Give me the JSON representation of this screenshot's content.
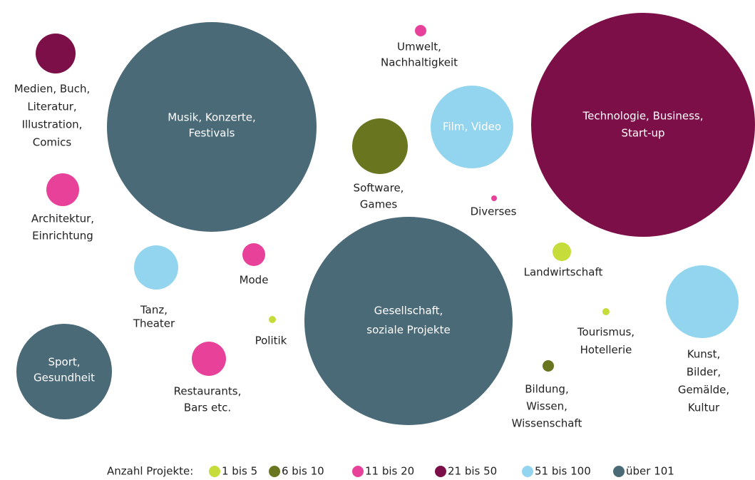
{
  "legend": {
    "title": "Anzahl Projekte:",
    "items": [
      {
        "label": "1 bis 5",
        "color": "#c6dc3a"
      },
      {
        "label": "6 bis 10",
        "color": "#6a7520"
      },
      {
        "label": "11 bis 20",
        "color": "#e8419a"
      },
      {
        "label": "21 bis 50",
        "color": "#7d0f48"
      },
      {
        "label": "51 bis 100",
        "color": "#93d5ef"
      },
      {
        "label": "über 101",
        "color": "#4a6a78"
      }
    ]
  },
  "bubbles": [
    {
      "label": [
        "Medien, Buch,",
        "Literatur,",
        "Illustration,",
        "Comics"
      ],
      "group": 3
    },
    {
      "label": [
        "Musik, Konzerte,",
        "Festivals"
      ],
      "group": 5
    },
    {
      "label": [
        "Architektur,",
        "Einrichtung"
      ],
      "group": 2
    },
    {
      "label": [
        "Tanz,",
        "Theater"
      ],
      "group": 4
    },
    {
      "label": [
        "Sport,",
        "Gesundheit"
      ],
      "group": 5
    },
    {
      "label": [
        "Mode"
      ],
      "group": 2
    },
    {
      "label": [
        "Politik"
      ],
      "group": 0
    },
    {
      "label": [
        "Restaurants,",
        "Bars etc."
      ],
      "group": 2
    },
    {
      "label": [
        "Umwelt,",
        "Nachhaltigkeit"
      ],
      "group": 2
    },
    {
      "label": [
        "Film, Video"
      ],
      "group": 4
    },
    {
      "label": [
        "Software,",
        "Games"
      ],
      "group": 1
    },
    {
      "label": [
        "Diverses"
      ],
      "group": 2
    },
    {
      "label": [
        "Gesellschaft,",
        "soziale Projekte"
      ],
      "group": 5
    },
    {
      "label": [
        "Technologie, Business,",
        "Start-up"
      ],
      "group": 3
    },
    {
      "label": [
        "Landwirtschaft"
      ],
      "group": 0
    },
    {
      "label": [
        "Tourismus,",
        "Hotellerie"
      ],
      "group": 0
    },
    {
      "label": [
        "Kunst,",
        "Bilder,",
        "Gemälde,",
        "Kultur"
      ],
      "group": 4
    },
    {
      "label": [
        "Bildung,",
        "Wissen,",
        "Wissenschaft"
      ],
      "group": 1
    }
  ]
}
